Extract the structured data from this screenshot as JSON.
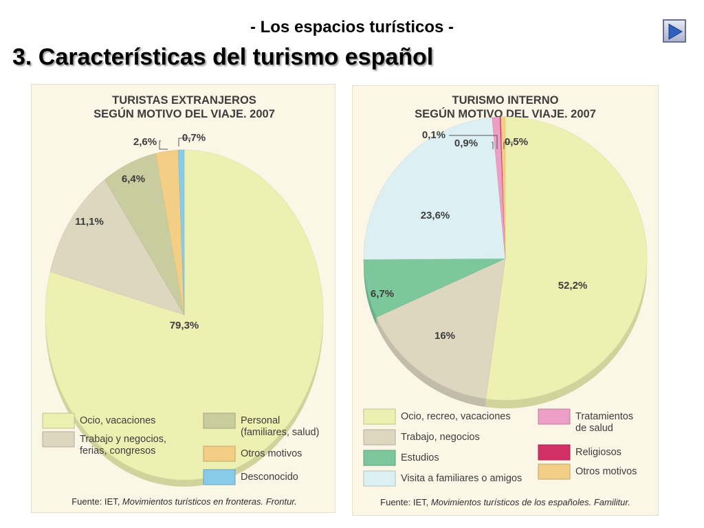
{
  "header": {
    "subtitle": "- Los espacios turísticos -",
    "title": "3. Características del turismo español",
    "next_icon": "play-right-triangle-icon"
  },
  "chart_data": [
    {
      "type": "pie",
      "title_lines": [
        "TURISTAS EXTRANJEROS",
        "SEGÚN MOTIVO DEL VIAJE. 2007"
      ],
      "slices": [
        {
          "label": "Ocio, vacaciones",
          "value": 79.3,
          "value_label": "79,3%",
          "color": "#eef0b2"
        },
        {
          "label": "Trabajo y negocios, ferias, congresos",
          "value": 11.1,
          "value_label": "11,1%",
          "color": "#ddd7c0"
        },
        {
          "label": "Personal (familiares, salud)",
          "value": 6.4,
          "value_label": "6,4%",
          "color": "#c9cc9e"
        },
        {
          "label": "Otros motivos",
          "value": 2.6,
          "value_label": "2,6%",
          "color": "#f3cf85"
        },
        {
          "label": "Desconocido",
          "value": 0.7,
          "value_label": "0,7%",
          "color": "#87cbe8"
        }
      ],
      "legend": [
        {
          "lines": [
            "Ocio, vacaciones"
          ],
          "color": "#eef0b2"
        },
        {
          "lines": [
            "Trabajo y negocios,",
            "ferias, congresos"
          ],
          "color": "#ddd7c0"
        },
        {
          "lines": [
            "Personal",
            "(familiares, salud)"
          ],
          "color": "#c9cc9e"
        },
        {
          "lines": [
            "Otros motivos"
          ],
          "color": "#f3cf85"
        },
        {
          "lines": [
            "Desconocido"
          ],
          "color": "#87cbe8"
        }
      ],
      "source_prefix": "Fuente: IET, ",
      "source_italic": "Movimientos turísticos en fronteras. Frontur."
    },
    {
      "type": "pie",
      "title_lines": [
        "TURISMO INTERNO",
        "SEGÚN MOTIVO DEL VIAJE. 2007"
      ],
      "slices": [
        {
          "label": "Ocio, recreo, vacaciones",
          "value": 52.2,
          "value_label": "52,2%",
          "color": "#eef0b2"
        },
        {
          "label": "Trabajo, negocios",
          "value": 16,
          "value_label": "16%",
          "color": "#ddd7c0"
        },
        {
          "label": "Estudios",
          "value": 6.7,
          "value_label": "6,7%",
          "color": "#7dc79c"
        },
        {
          "label": "Visita a familiares o amigos",
          "value": 23.6,
          "value_label": "23,6%",
          "color": "#dcf0f4"
        },
        {
          "label": "Tratamientos de salud",
          "value": 0.9,
          "value_label": "0,9%",
          "color": "#ec9ec5"
        },
        {
          "label": "Religiosos",
          "value": 0.1,
          "value_label": "0,1%",
          "color": "#d43068"
        },
        {
          "label": "Otros motivos",
          "value": 0.5,
          "value_label": "0,5%",
          "color": "#f3cf85"
        }
      ],
      "legend": [
        {
          "lines": [
            "Ocio, recreo, vacaciones"
          ],
          "color": "#eef0b2"
        },
        {
          "lines": [
            "Trabajo, negocios"
          ],
          "color": "#ddd7c0"
        },
        {
          "lines": [
            "Estudios"
          ],
          "color": "#7dc79c"
        },
        {
          "lines": [
            "Visita a familiares o amigos"
          ],
          "color": "#dcf0f4"
        },
        {
          "lines": [
            "Tratamientos",
            "de salud"
          ],
          "color": "#ec9ec5"
        },
        {
          "lines": [
            "Religiosos"
          ],
          "color": "#d43068"
        },
        {
          "lines": [
            "Otros motivos"
          ],
          "color": "#f3cf85"
        }
      ],
      "source_prefix": "Fuente: IET, ",
      "source_italic": "Movimientos turísticos de los españoles. Familitur."
    }
  ]
}
